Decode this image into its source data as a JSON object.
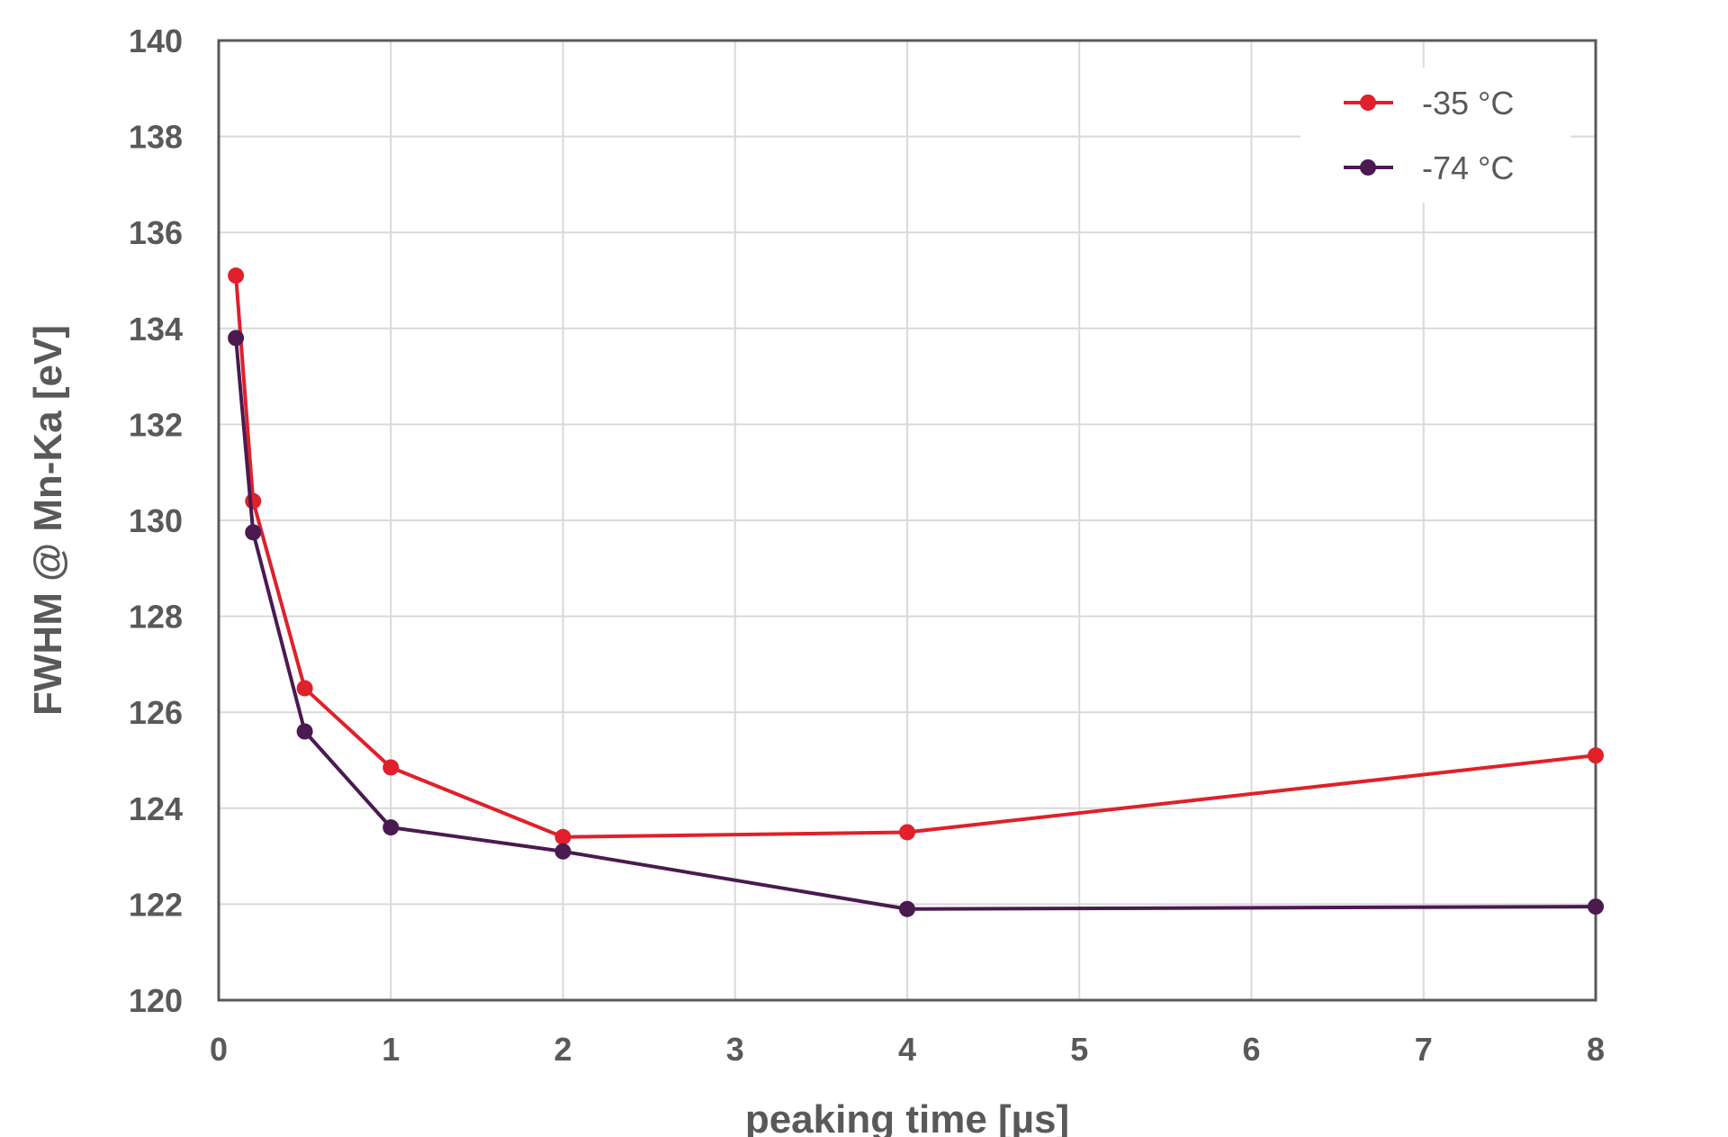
{
  "chart_data": {
    "type": "line",
    "xlabel": "peaking time [µs]",
    "ylabel": "FWHM @ Mn-Ka [eV]",
    "x_tick_labels": [
      "0",
      "1",
      "2",
      "3",
      "4",
      "5",
      "6",
      "7",
      "8"
    ],
    "y_tick_labels": [
      "120",
      "122",
      "124",
      "126",
      "128",
      "130",
      "132",
      "134",
      "136",
      "138",
      "140"
    ],
    "ylim": [
      120,
      140
    ],
    "grid": true,
    "legend_position": "top-right",
    "series": [
      {
        "name": "-35 °C",
        "color": "#e0202a",
        "points": [
          {
            "x_pos": 0.1,
            "peaking_time_us": 0.1,
            "y": 135.1
          },
          {
            "x_pos": 0.2,
            "peaking_time_us": 0.2,
            "y": 130.4
          },
          {
            "x_pos": 0.5,
            "peaking_time_us": 0.5,
            "y": 126.5
          },
          {
            "x_pos": 1,
            "peaking_time_us": 1,
            "y": 124.85
          },
          {
            "x_pos": 2,
            "peaking_time_us": 2,
            "y": 123.4
          },
          {
            "x_pos": 4,
            "peaking_time_us": 4,
            "y": 123.5
          },
          {
            "x_pos": 8,
            "peaking_time_us": 8,
            "y": 125.1
          }
        ]
      },
      {
        "name": "-74 °C",
        "color": "#4a1a50",
        "points": [
          {
            "x_pos": 0.1,
            "peaking_time_us": 0.1,
            "y": 133.8
          },
          {
            "x_pos": 0.2,
            "peaking_time_us": 0.2,
            "y": 129.75
          },
          {
            "x_pos": 0.5,
            "peaking_time_us": 0.5,
            "y": 125.6
          },
          {
            "x_pos": 1,
            "peaking_time_us": 1,
            "y": 123.6
          },
          {
            "x_pos": 2,
            "peaking_time_us": 2,
            "y": 123.1
          },
          {
            "x_pos": 4,
            "peaking_time_us": 4,
            "y": 121.9
          },
          {
            "x_pos": 8,
            "peaking_time_us": 8,
            "y": 121.95
          }
        ]
      }
    ]
  }
}
